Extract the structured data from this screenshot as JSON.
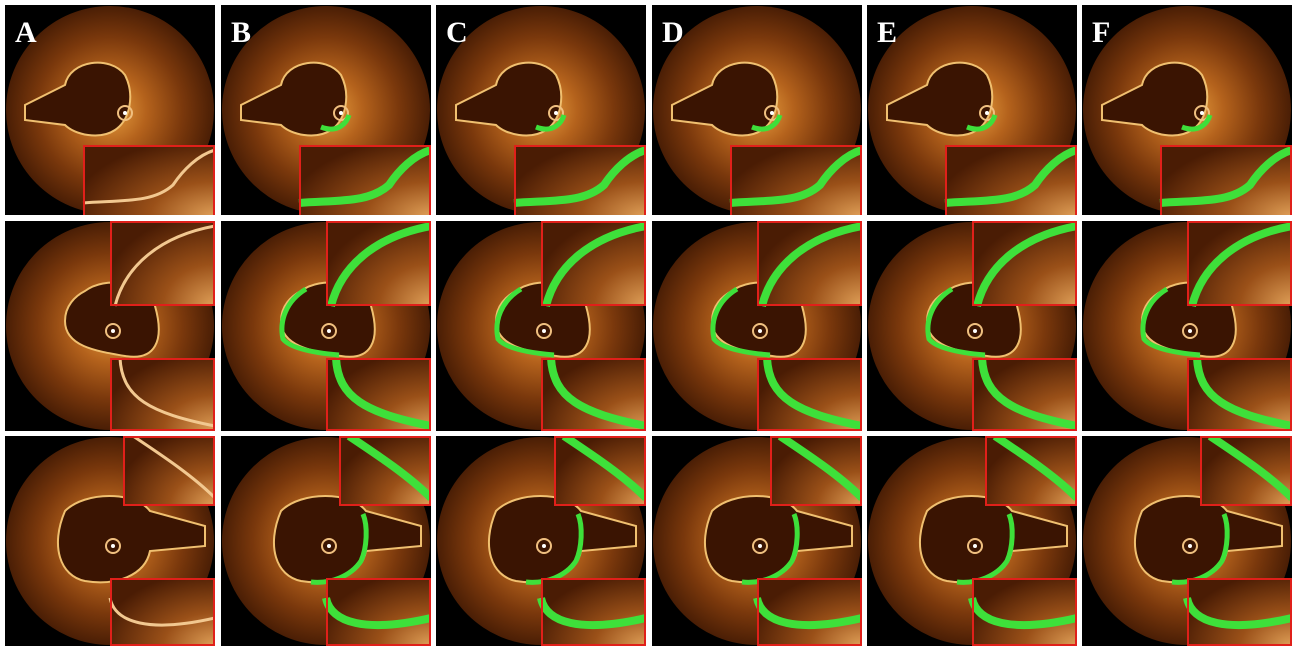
{
  "panels": {
    "labels": [
      "A",
      "B",
      "C",
      "D",
      "E",
      "F"
    ]
  }
}
